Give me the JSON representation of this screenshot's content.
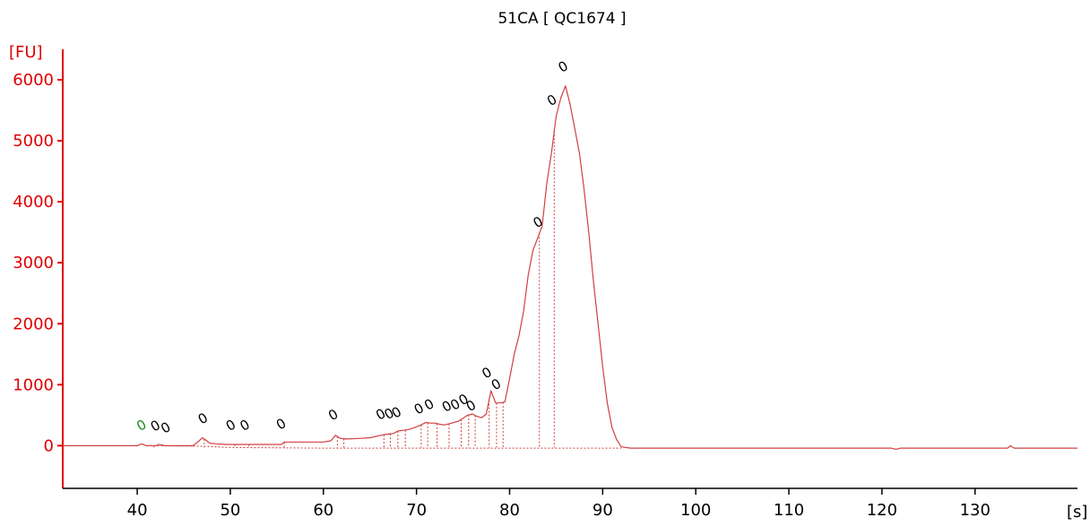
{
  "chart_data": {
    "type": "line",
    "title": "51CA  [ QC1674 ]",
    "xlabel": "[s]",
    "ylabel": "[FU]",
    "xlim": [
      32,
      141
    ],
    "ylim": [
      -700,
      6500
    ],
    "xticks": [
      40,
      50,
      60,
      70,
      80,
      90,
      100,
      110,
      120,
      130
    ],
    "yticks": [
      0,
      1000,
      2000,
      3000,
      4000,
      5000,
      6000
    ],
    "grid": false,
    "colors": {
      "axis": "#e00000",
      "trace": "#d04040",
      "peak_label": "#000000",
      "marker_label": "#1a8a1a",
      "baseline": "#d04040"
    },
    "series": [
      {
        "x": [
          32,
          40,
          40.5,
          40.8,
          41,
          42,
          42.3,
          43,
          44,
          46,
          46.5,
          47,
          47.3,
          47.8,
          48.5,
          49.5,
          50.5,
          51.5,
          52.5,
          53.5,
          55.5,
          55.8,
          57,
          59,
          60,
          60.8,
          61.3,
          61.8,
          62.5,
          64,
          65,
          66.5,
          67,
          67.5,
          68,
          68.5,
          69,
          69.5,
          70,
          70.5,
          71,
          71.5,
          72,
          72.5,
          73,
          73.5,
          74,
          74.5,
          75,
          75.5,
          76,
          76.5,
          77,
          77.5,
          78,
          78.5,
          79,
          79.5,
          80,
          80.5,
          81,
          81.5,
          82,
          82.5,
          83,
          83.5,
          84,
          84.5,
          85,
          85.5,
          86,
          86.5,
          87,
          87.5,
          88,
          88.5,
          89,
          89.5,
          90,
          90.5,
          91,
          91.5,
          92,
          93,
          95,
          100,
          110,
          121,
          121.5,
          122,
          125,
          130,
          133.5,
          133.8,
          134.2,
          136,
          141
        ],
        "y": [
          0,
          0,
          30,
          10,
          0,
          0,
          20,
          0,
          0,
          0,
          60,
          130,
          100,
          40,
          30,
          20,
          20,
          20,
          20,
          20,
          20,
          60,
          60,
          60,
          60,
          80,
          170,
          120,
          110,
          120,
          130,
          180,
          190,
          200,
          240,
          250,
          260,
          280,
          310,
          340,
          380,
          370,
          370,
          350,
          340,
          360,
          380,
          400,
          450,
          500,
          520,
          480,
          460,
          520,
          900,
          700,
          700,
          720,
          1100,
          1500,
          1800,
          2200,
          2800,
          3200,
          3400,
          3600,
          4300,
          4800,
          5400,
          5700,
          5900,
          5600,
          5200,
          4800,
          4200,
          3500,
          2700,
          2000,
          1300,
          700,
          300,
          100,
          -20,
          -40,
          -40,
          -40,
          -40,
          -40,
          -60,
          -40,
          -40,
          -40,
          -40,
          0,
          -40,
          -40,
          -40
        ]
      }
    ],
    "baseline_segments": [
      {
        "x": [
          41,
          47,
          50,
          60,
          70,
          80,
          85,
          88,
          92
        ],
        "y": [
          0,
          -10,
          -30,
          -40,
          -40,
          -40,
          -40,
          -40,
          -40
        ]
      }
    ],
    "dropline_x": [
      41.8,
      47.2,
      50.5,
      52,
      55.8,
      61.5,
      62.2,
      66.5,
      67.2,
      68,
      68.8,
      70.5,
      71.2,
      72.2,
      73.5,
      74.8,
      75.6,
      76.3,
      77.8,
      78.6,
      79.3,
      83.2,
      84.8
    ],
    "peak_labels": [
      {
        "x": 40.7,
        "y": 270,
        "text": "0",
        "color": "green"
      },
      {
        "x": 42.2,
        "y": 260,
        "text": "0"
      },
      {
        "x": 43.3,
        "y": 230,
        "text": "0"
      },
      {
        "x": 47.3,
        "y": 380,
        "text": "0"
      },
      {
        "x": 50.3,
        "y": 270,
        "text": "0"
      },
      {
        "x": 51.8,
        "y": 270,
        "text": "0"
      },
      {
        "x": 55.7,
        "y": 290,
        "text": "0"
      },
      {
        "x": 61.3,
        "y": 440,
        "text": "0"
      },
      {
        "x": 66.4,
        "y": 450,
        "text": "0"
      },
      {
        "x": 67.3,
        "y": 460,
        "text": "0"
      },
      {
        "x": 68.1,
        "y": 480,
        "text": "0"
      },
      {
        "x": 70.5,
        "y": 540,
        "text": "0"
      },
      {
        "x": 71.6,
        "y": 610,
        "text": "0"
      },
      {
        "x": 73.5,
        "y": 580,
        "text": "0"
      },
      {
        "x": 74.4,
        "y": 610,
        "text": "0"
      },
      {
        "x": 75.3,
        "y": 690,
        "text": "0"
      },
      {
        "x": 76.1,
        "y": 590,
        "text": "0"
      },
      {
        "x": 77.8,
        "y": 1130,
        "text": "0"
      },
      {
        "x": 78.8,
        "y": 940,
        "text": "0"
      },
      {
        "x": 83.3,
        "y": 3600,
        "text": "0"
      },
      {
        "x": 84.8,
        "y": 5600,
        "text": "0"
      },
      {
        "x": 86,
        "y": 6150,
        "text": "0"
      }
    ]
  }
}
